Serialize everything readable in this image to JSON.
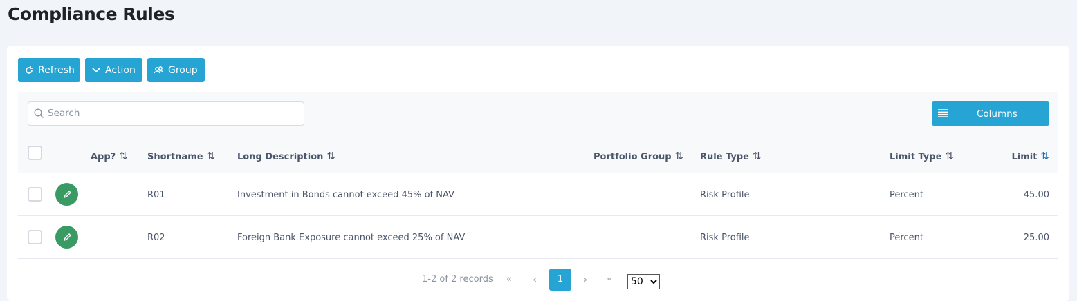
{
  "page": {
    "title": "Compliance Rules"
  },
  "toolbar": {
    "refresh": "Refresh",
    "action": "Action",
    "group": "Group"
  },
  "search": {
    "placeholder": "Search",
    "value": ""
  },
  "columns_button": "Columns",
  "headers": [
    "App?",
    "Shortname",
    "Long Description",
    "Portfolio Group",
    "Rule Type",
    "Limit Type",
    "Limit"
  ],
  "rows": [
    {
      "app": "",
      "shortname": "R01",
      "long_description": "Investment in Bonds cannot exceed 45% of NAV",
      "portfolio_group": "",
      "rule_type": "Risk Profile",
      "limit_type": "Percent",
      "limit": "45.00"
    },
    {
      "app": "",
      "shortname": "R02",
      "long_description": "Foreign Bank Exposure cannot exceed 25% of NAV",
      "portfolio_group": "",
      "rule_type": "Risk Profile",
      "limit_type": "Percent",
      "limit": "25.00"
    }
  ],
  "pagination": {
    "summary": "1-2 of 2 records",
    "first": "«",
    "prev": "‹",
    "current": "1",
    "next": "›",
    "last": "»",
    "page_size": "50",
    "page_size_options": [
      "50"
    ]
  },
  "colors": {
    "primary": "#26a5d4",
    "edit": "#3a9a64"
  }
}
